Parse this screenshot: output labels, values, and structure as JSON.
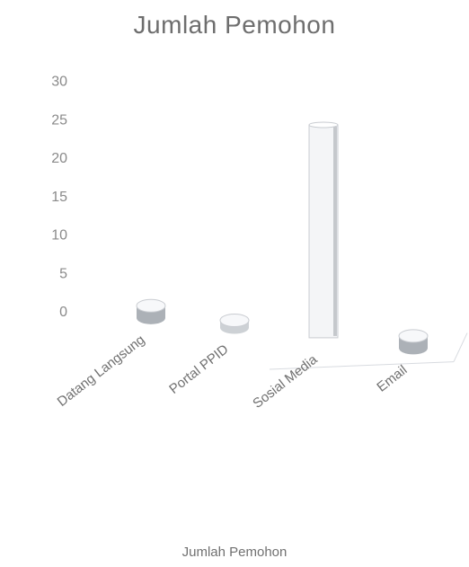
{
  "chart_data": {
    "type": "bar",
    "title": "Jumlah Pemohon",
    "categories": [
      "Datang Langsung",
      "Portal PPID",
      "Sosial Media",
      "Email"
    ],
    "series": [
      {
        "name": "Jumlah Pemohon",
        "values": [
          1,
          0,
          27,
          1
        ]
      }
    ],
    "ylim": [
      0,
      30
    ],
    "yticks": [
      0,
      5,
      10,
      15,
      20,
      25,
      30
    ],
    "grid": false,
    "legend": "bottom",
    "colors": {
      "bar_fill": "#f4f5f7",
      "bar_edge": "#c9ccd1",
      "bar_shade": "#9ea3aa",
      "floor_line": "#d8dbe0"
    }
  }
}
